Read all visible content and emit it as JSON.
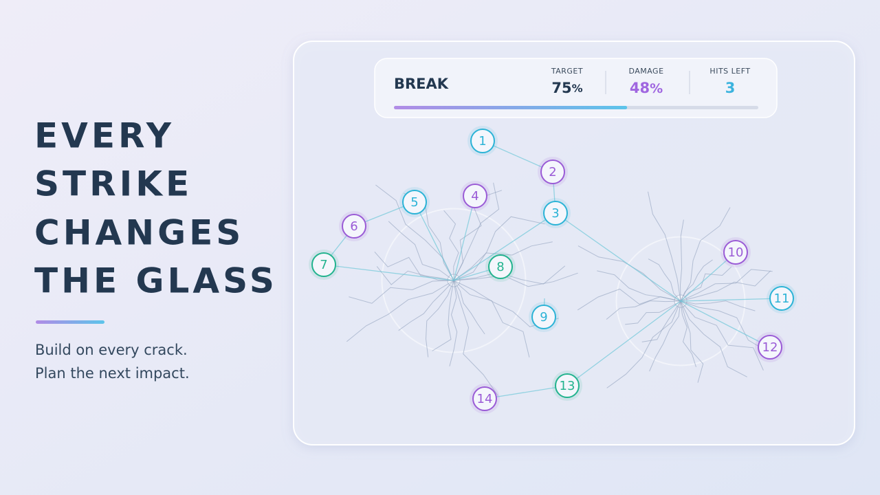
{
  "headline": [
    "EVERY",
    "STRIKE",
    "CHANGES",
    "THE GLASS"
  ],
  "subtitle": [
    "Build on every crack.",
    "Plan the next impact."
  ],
  "hud": {
    "mode": "BREAK",
    "target": {
      "label": "TARGET",
      "value": 75,
      "unit": "%"
    },
    "damage": {
      "label": "DAMAGE",
      "value": 48,
      "unit": "%"
    },
    "hits_left": {
      "label": "HITS LEFT",
      "value": 3
    }
  },
  "nodes": [
    {
      "label": "1",
      "color": "#2bb3d6"
    },
    {
      "label": "2",
      "color": "#9a5bd6"
    },
    {
      "label": "3",
      "color": "#2bb3d6"
    },
    {
      "label": "4",
      "color": "#9a5bd6"
    },
    {
      "label": "5",
      "color": "#2bb3d6"
    },
    {
      "label": "6",
      "color": "#9a5bd6"
    },
    {
      "label": "7",
      "color": "#22b38e"
    },
    {
      "label": "8",
      "color": "#22b38e"
    },
    {
      "label": "9",
      "color": "#2bb3d6"
    },
    {
      "label": "10",
      "color": "#9a5bd6"
    },
    {
      "label": "11",
      "color": "#2bb3d6"
    },
    {
      "label": "12",
      "color": "#9a5bd6"
    },
    {
      "label": "13",
      "color": "#22b38e"
    },
    {
      "label": "14",
      "color": "#9a5bd6"
    }
  ]
}
